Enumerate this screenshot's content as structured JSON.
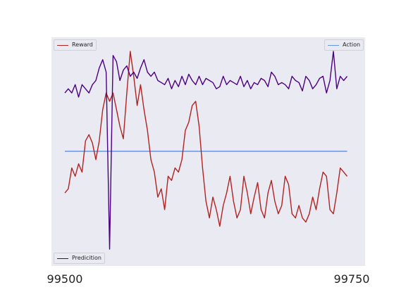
{
  "chart_data": {
    "type": "line",
    "xlim": [
      99500,
      99750
    ],
    "ylim": [
      0,
      100
    ],
    "grid": false,
    "xticks": [
      {
        "value": 99500,
        "label": "99500"
      },
      {
        "value": 99750,
        "label": "99750"
      }
    ],
    "series": [
      {
        "name": "Reward",
        "color": "#b22222",
        "legend_position": "upper left",
        "x": [
          99500,
          99503,
          99506,
          99509,
          99512,
          99515,
          99518,
          99521,
          99524,
          99527,
          99530,
          99533,
          99536,
          99539,
          99542,
          99545,
          99548,
          99551,
          99554,
          99557,
          99560,
          99563,
          99566,
          99569,
          99572,
          99575,
          99578,
          99581,
          99584,
          99587,
          99590,
          99593,
          99596,
          99599,
          99602,
          99605,
          99608,
          99611,
          99614,
          99617,
          99620,
          99623,
          99626,
          99629,
          99632,
          99635,
          99638,
          99641,
          99644,
          99647,
          99650,
          99653,
          99656,
          99659,
          99662,
          99665,
          99668,
          99671,
          99674,
          99677,
          99680,
          99683,
          99686,
          99689,
          99692,
          99695,
          99698,
          99701,
          99704,
          99707,
          99710,
          99713,
          99716,
          99719,
          99722,
          99725,
          99728,
          99731,
          99734,
          99737,
          99740,
          99743,
          99746
        ],
        "y": [
          30,
          32,
          42,
          38,
          44,
          40,
          55,
          58,
          54,
          46,
          55,
          70,
          78,
          74,
          78,
          70,
          62,
          56,
          78,
          98,
          86,
          72,
          82,
          70,
          60,
          46,
          40,
          28,
          32,
          22,
          38,
          36,
          42,
          40,
          46,
          60,
          64,
          72,
          74,
          62,
          42,
          26,
          18,
          28,
          22,
          14,
          24,
          30,
          38,
          26,
          18,
          22,
          38,
          30,
          20,
          28,
          35,
          22,
          18,
          30,
          36,
          26,
          20,
          24,
          38,
          34,
          20,
          18,
          24,
          18,
          16,
          20,
          28,
          22,
          32,
          40,
          38,
          22,
          20,
          30,
          42,
          40,
          38
        ]
      },
      {
        "name": "Action",
        "color": "#6495ed",
        "legend_position": "upper right",
        "x": [
          99500,
          99746
        ],
        "y": [
          50,
          50
        ]
      },
      {
        "name": "Predicition",
        "color": "#4b0082",
        "legend_position": "lower left",
        "x": [
          99500,
          99503,
          99506,
          99509,
          99512,
          99515,
          99518,
          99521,
          99524,
          99527,
          99530,
          99533,
          99536,
          99539,
          99542,
          99545,
          99548,
          99551,
          99554,
          99557,
          99560,
          99563,
          99566,
          99569,
          99572,
          99575,
          99578,
          99581,
          99584,
          99587,
          99590,
          99593,
          99596,
          99599,
          99602,
          99605,
          99608,
          99611,
          99614,
          99617,
          99620,
          99623,
          99626,
          99629,
          99632,
          99635,
          99638,
          99641,
          99644,
          99647,
          99650,
          99653,
          99656,
          99659,
          99662,
          99665,
          99668,
          99671,
          99674,
          99677,
          99680,
          99683,
          99686,
          99689,
          99692,
          99695,
          99698,
          99701,
          99704,
          99707,
          99710,
          99713,
          99716,
          99719,
          99722,
          99725,
          99728,
          99731,
          99734,
          99737,
          99740,
          99743,
          99746
        ],
        "y": [
          78,
          80,
          78,
          82,
          76,
          82,
          80,
          78,
          82,
          84,
          90,
          94,
          88,
          3,
          96,
          93,
          84,
          89,
          91,
          86,
          88,
          85,
          90,
          94,
          88,
          86,
          88,
          84,
          83,
          82,
          85,
          80,
          84,
          81,
          86,
          82,
          87,
          84,
          82,
          86,
          82,
          85,
          84,
          83,
          80,
          81,
          86,
          82,
          84,
          83,
          82,
          86,
          81,
          84,
          80,
          83,
          82,
          85,
          84,
          81,
          88,
          86,
          82,
          83,
          82,
          80,
          86,
          84,
          83,
          79,
          86,
          84,
          80,
          82,
          85,
          86,
          78,
          84,
          98,
          80,
          86,
          84,
          86
        ]
      }
    ]
  }
}
